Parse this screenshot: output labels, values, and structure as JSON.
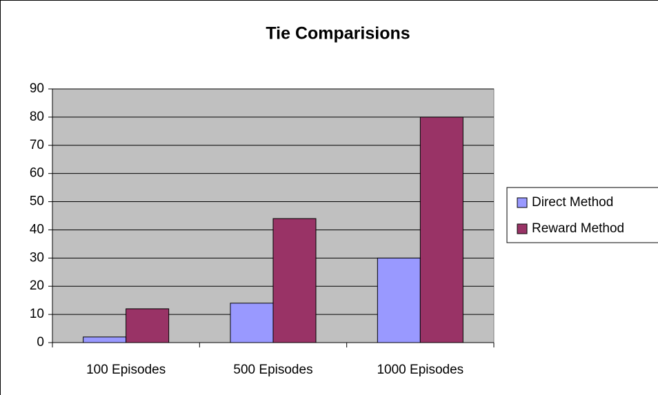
{
  "chart_data": {
    "type": "bar",
    "title": "Tie Comparisions",
    "categories": [
      "100 Episodes",
      "500 Episodes",
      "1000 Episodes"
    ],
    "series": [
      {
        "name": "Direct Method",
        "color": "#9999ff",
        "values": [
          2,
          14,
          30
        ]
      },
      {
        "name": "Reward Method",
        "color": "#993366",
        "values": [
          12,
          44,
          80
        ]
      }
    ],
    "ylim": [
      0,
      90
    ],
    "yticks": [
      0,
      10,
      20,
      30,
      40,
      50,
      60,
      70,
      80,
      90
    ],
    "grid": true,
    "plot_background": "#c0c0c0",
    "legend": "right"
  }
}
